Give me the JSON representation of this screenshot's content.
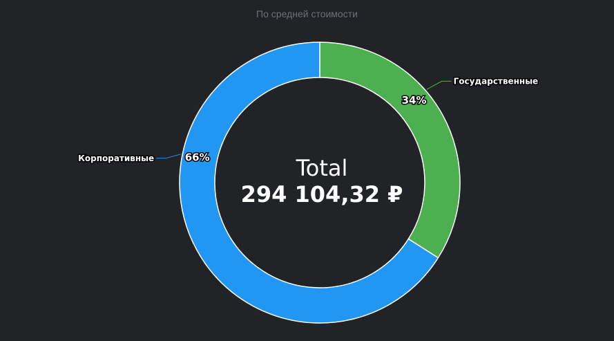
{
  "chart_data": {
    "type": "pie",
    "title": "По средней стоимости",
    "center_title": "Total",
    "center_value": "294 104,32 ₽",
    "slices": [
      {
        "label": "Государственные",
        "percent": 34,
        "percent_label": "34%",
        "color": "#4caf50"
      },
      {
        "label": "Корпоративные",
        "percent": 66,
        "percent_label": "66%",
        "color": "#2196f3"
      }
    ]
  }
}
